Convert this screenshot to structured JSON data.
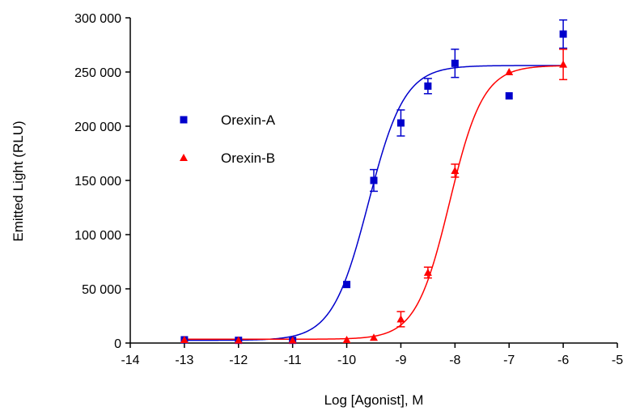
{
  "chart_data": {
    "type": "scatter",
    "title": "",
    "xlabel": "Log [Agonist], M",
    "ylabel": "Emitted Light (RLU)",
    "xlim": [
      -14,
      -5
    ],
    "ylim": [
      0,
      300000
    ],
    "x_ticks": [
      -14,
      -13,
      -12,
      -11,
      -10,
      -9,
      -8,
      -7,
      -6,
      -5
    ],
    "x_tick_labels": [
      "-14",
      "-13",
      "-12",
      "-11",
      "-10",
      "-9",
      "-8",
      "-7",
      "-6",
      "-5"
    ],
    "y_ticks": [
      0,
      50000,
      100000,
      150000,
      200000,
      250000,
      300000
    ],
    "y_tick_labels": [
      "0",
      "50 000",
      "100 000",
      "150 000",
      "200 000",
      "250 000",
      "300 000"
    ],
    "grid": false,
    "legend_position": "left-center",
    "series": [
      {
        "name": "Orexin-A",
        "marker": "square",
        "color": "#0000cc",
        "points": [
          {
            "x": -13,
            "y": 3000,
            "err": 0
          },
          {
            "x": -12,
            "y": 2500,
            "err": 0
          },
          {
            "x": -11,
            "y": 2500,
            "err": 0
          },
          {
            "x": -10,
            "y": 54000,
            "err": 0
          },
          {
            "x": -9.5,
            "y": 150000,
            "err": 10000
          },
          {
            "x": -9,
            "y": 203000,
            "err": 12000
          },
          {
            "x": -8.5,
            "y": 237000,
            "err": 7000
          },
          {
            "x": -8,
            "y": 258000,
            "err": 13000
          },
          {
            "x": -7,
            "y": 228000,
            "err": 0
          },
          {
            "x": -6,
            "y": 285000,
            "err": 13000
          }
        ],
        "fit": {
          "bottom": 2500,
          "top": 256000,
          "logEC50": -9.6,
          "hill": 1.3
        }
      },
      {
        "name": "Orexin-B",
        "marker": "triangle",
        "color": "#ff0000",
        "points": [
          {
            "x": -13,
            "y": 3000,
            "err": 0
          },
          {
            "x": -12,
            "y": 2500,
            "err": 0
          },
          {
            "x": -11,
            "y": 2500,
            "err": 0
          },
          {
            "x": -10,
            "y": 3000,
            "err": 0
          },
          {
            "x": -9.5,
            "y": 5000,
            "err": 0
          },
          {
            "x": -9,
            "y": 22000,
            "err": 7000
          },
          {
            "x": -8.5,
            "y": 65000,
            "err": 5000
          },
          {
            "x": -8,
            "y": 159000,
            "err": 6000
          },
          {
            "x": -7,
            "y": 250000,
            "err": 0
          },
          {
            "x": -6,
            "y": 257000,
            "err": 14000
          }
        ],
        "fit": {
          "bottom": 3500,
          "top": 256000,
          "logEC50": -8.1,
          "hill": 1.4
        }
      }
    ]
  }
}
